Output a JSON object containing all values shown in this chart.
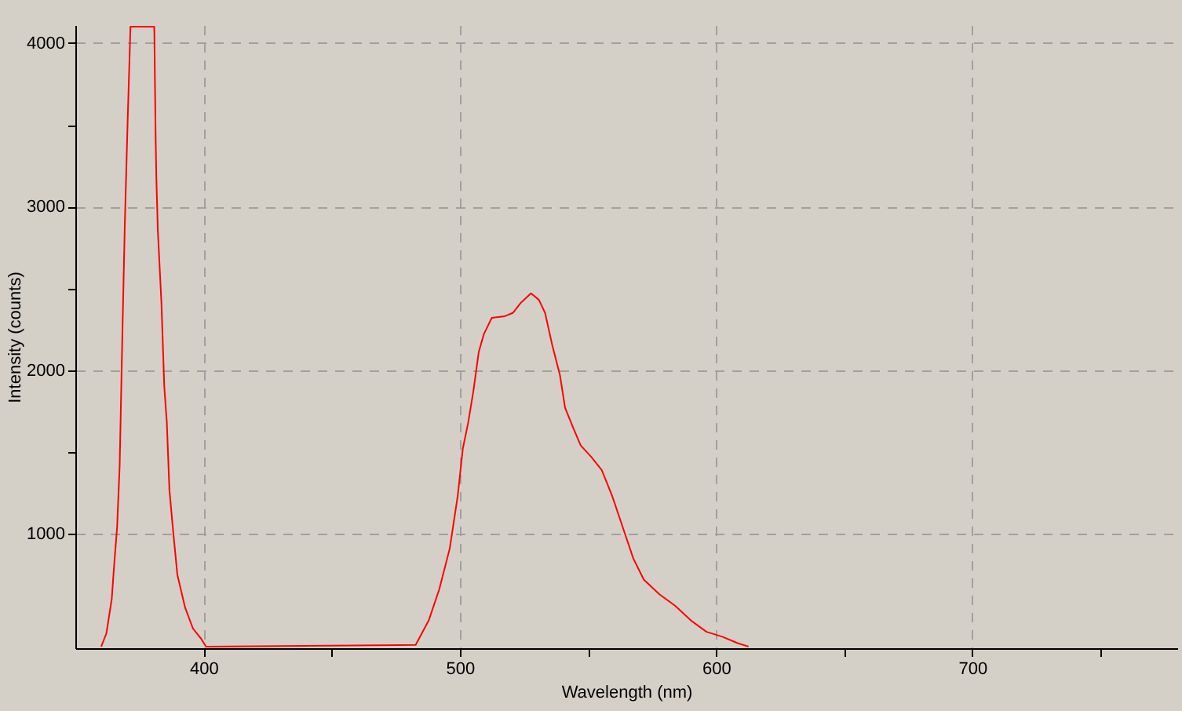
{
  "chart_data": {
    "type": "line",
    "xlabel": "Wavelength (nm)",
    "ylabel": "Intensity (counts)",
    "xlim": [
      350,
      780
    ],
    "ylim": [
      300,
      4110
    ],
    "xticks": [
      400,
      {
        "value": 450,
        "label": null
      },
      500,
      {
        "value": 550,
        "label": null
      },
      600,
      {
        "value": 650,
        "label": null
      },
      700,
      {
        "value": 750,
        "label": null
      }
    ],
    "yticks": [
      1000,
      {
        "value": 1500,
        "label": null
      },
      2000,
      {
        "value": 2500,
        "label": null
      },
      3000,
      {
        "value": 3500,
        "label": null
      },
      4000
    ],
    "grid": true,
    "marker": "none",
    "line_style": "solid",
    "series": [
      {
        "color": "#ff0000",
        "x": [
          360.1,
          362.1,
          364.2,
          365.2,
          366.3,
          367.3,
          368.3,
          369.3,
          370.4,
          371.4,
          371.5,
          380.8,
          381.3,
          381.6,
          382.2,
          383.6,
          384.7,
          385.7,
          386.7,
          388.2,
          389.8,
          392.8,
          395.9,
          399,
          401,
          482.8,
          487.9,
          492,
          496.1,
          499.2,
          501.2,
          503.3,
          505.3,
          507.4,
          509.4,
          512.5,
          517.6,
          520.7,
          523.7,
          527.8,
          530.9,
          533.3,
          536,
          539.1,
          541.1,
          544.2,
          547.2,
          551.3,
          555.4,
          559.5,
          563.6,
          567.7,
          571.8,
          577.9,
          584,
          590.2,
          596.3,
          602.5,
          608.6,
          612.7
        ],
        "values": [
          310,
          390,
          600,
          820,
          1040,
          1420,
          2180,
          2890,
          3520,
          4040,
          4100,
          4100,
          3460,
          3180,
          2850,
          2410,
          1900,
          1680,
          1270,
          1010,
          750,
          550,
          420,
          360,
          310,
          320,
          470,
          660,
          910,
          1230,
          1520,
          1680,
          1870,
          2110,
          2220,
          2320,
          2330,
          2350,
          2410,
          2470,
          2430,
          2350,
          2160,
          1970,
          1770,
          1650,
          1540,
          1470,
          1390,
          1230,
          1040,
          850,
          720,
          630,
          560,
          470,
          400,
          370,
          330,
          310
        ]
      }
    ]
  }
}
